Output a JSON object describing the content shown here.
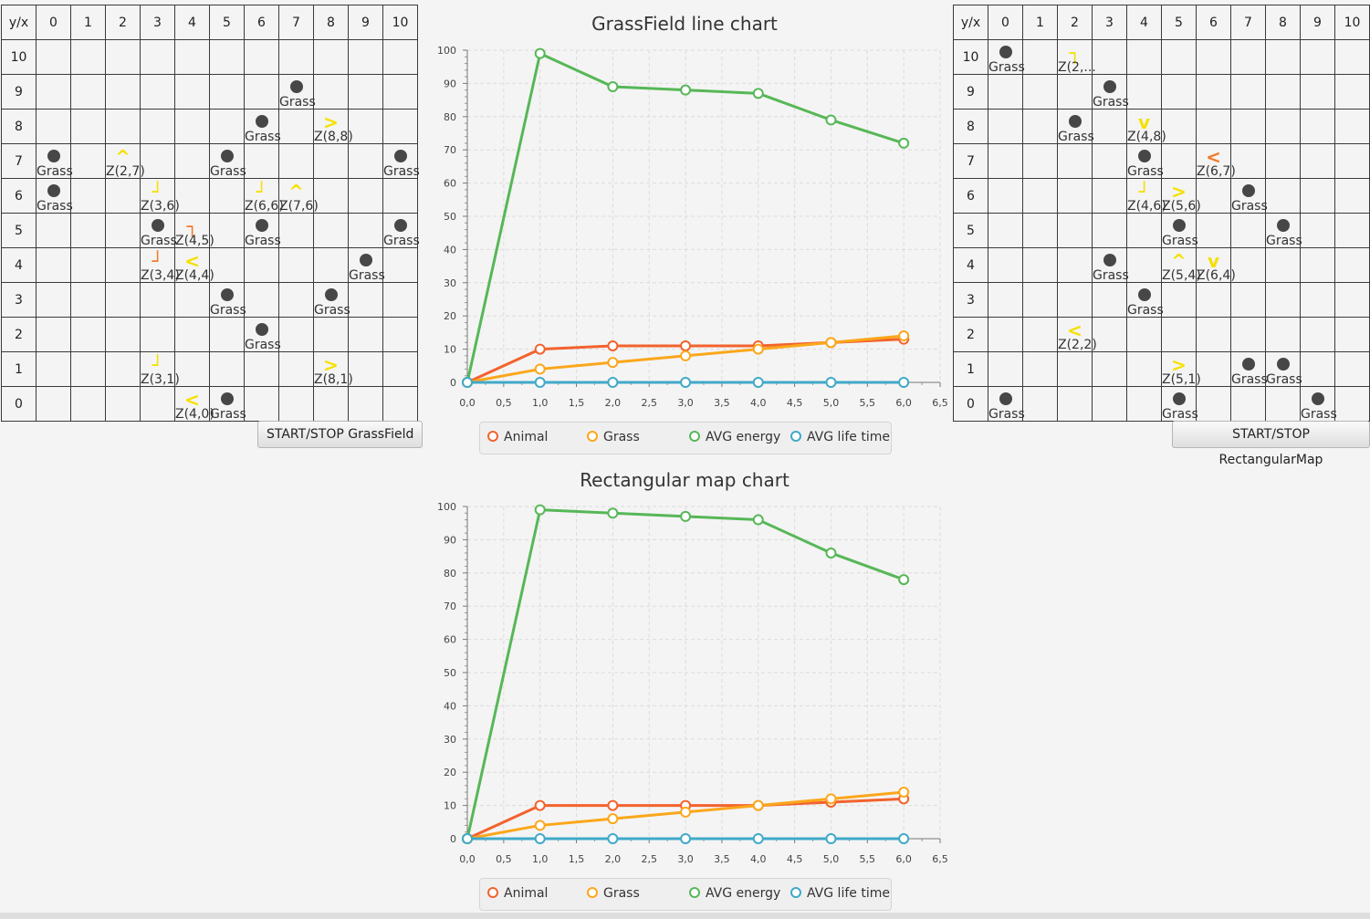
{
  "grass_grid": {
    "corner_label": "y/x",
    "x_headers": [
      "0",
      "1",
      "2",
      "3",
      "4",
      "5",
      "6",
      "7",
      "8",
      "9",
      "10"
    ],
    "y_headers": [
      "10",
      "9",
      "8",
      "7",
      "6",
      "5",
      "4",
      "3",
      "2",
      "1",
      "0"
    ],
    "cells": [
      {
        "x": 7,
        "y": 9,
        "kind": "grass",
        "label": "Grass"
      },
      {
        "x": 6,
        "y": 8,
        "kind": "grass",
        "label": "Grass"
      },
      {
        "x": 8,
        "y": 8,
        "kind": "animal",
        "dir": "right",
        "color": "#f5e000",
        "label": "Z(8,8)"
      },
      {
        "x": 0,
        "y": 7,
        "kind": "grass",
        "label": "Grass"
      },
      {
        "x": 2,
        "y": 7,
        "kind": "animal",
        "dir": "up",
        "color": "#f5e000",
        "label": "Z(2,7)"
      },
      {
        "x": 5,
        "y": 7,
        "kind": "grass",
        "label": "Grass"
      },
      {
        "x": 10,
        "y": 7,
        "kind": "grass",
        "label": "Grass"
      },
      {
        "x": 0,
        "y": 6,
        "kind": "grass",
        "label": "Grass"
      },
      {
        "x": 3,
        "y": 6,
        "kind": "animal",
        "dir": "down-right",
        "color": "#f5e000",
        "label": "Z(3,6)"
      },
      {
        "x": 6,
        "y": 6,
        "kind": "animal",
        "dir": "down-right",
        "color": "#f5e000",
        "label": "Z(6,6)"
      },
      {
        "x": 7,
        "y": 6,
        "kind": "animal",
        "dir": "up",
        "color": "#f5e000",
        "label": "Z(7,6)"
      },
      {
        "x": 3,
        "y": 5,
        "kind": "grass",
        "label": "Grass"
      },
      {
        "x": 4,
        "y": 5,
        "kind": "animal",
        "dir": "up-right",
        "color": "#f07b2c",
        "label": "Z(4,5)"
      },
      {
        "x": 6,
        "y": 5,
        "kind": "grass",
        "label": "Grass"
      },
      {
        "x": 10,
        "y": 5,
        "kind": "grass",
        "label": "Grass"
      },
      {
        "x": 3,
        "y": 4,
        "kind": "animal",
        "dir": "down-right",
        "color": "#f07b2c",
        "label": "Z(3,4)"
      },
      {
        "x": 4,
        "y": 4,
        "kind": "animal",
        "dir": "left",
        "color": "#f5e000",
        "label": "Z(4,4)"
      },
      {
        "x": 9,
        "y": 4,
        "kind": "grass",
        "label": "Grass"
      },
      {
        "x": 5,
        "y": 3,
        "kind": "grass",
        "label": "Grass"
      },
      {
        "x": 8,
        "y": 3,
        "kind": "grass",
        "label": "Grass"
      },
      {
        "x": 6,
        "y": 2,
        "kind": "grass",
        "label": "Grass"
      },
      {
        "x": 3,
        "y": 1,
        "kind": "animal",
        "dir": "down-right",
        "color": "#f5e000",
        "label": "Z(3,1)"
      },
      {
        "x": 8,
        "y": 1,
        "kind": "animal",
        "dir": "right",
        "color": "#f5e000",
        "label": "Z(8,1)"
      },
      {
        "x": 4,
        "y": 0,
        "kind": "animal",
        "dir": "left",
        "color": "#f5e000",
        "label": "Z(4,0)"
      },
      {
        "x": 5,
        "y": 0,
        "kind": "grass",
        "label": "Grass"
      }
    ]
  },
  "rect_grid": {
    "corner_label": "y/x",
    "x_headers": [
      "0",
      "1",
      "2",
      "3",
      "4",
      "5",
      "6",
      "7",
      "8",
      "9",
      "10"
    ],
    "y_headers": [
      "10",
      "9",
      "8",
      "7",
      "6",
      "5",
      "4",
      "3",
      "2",
      "1",
      "0"
    ],
    "cells": [
      {
        "x": 0,
        "y": 10,
        "kind": "grass",
        "label": "Grass"
      },
      {
        "x": 2,
        "y": 10,
        "kind": "animal",
        "dir": "up-right",
        "color": "#f5e000",
        "label": "Z(2,..."
      },
      {
        "x": 3,
        "y": 9,
        "kind": "grass",
        "label": "Grass"
      },
      {
        "x": 2,
        "y": 8,
        "kind": "grass",
        "label": "Grass"
      },
      {
        "x": 4,
        "y": 8,
        "kind": "animal",
        "dir": "down",
        "color": "#f5e000",
        "label": "Z(4,8)"
      },
      {
        "x": 4,
        "y": 7,
        "kind": "grass",
        "label": "Grass"
      },
      {
        "x": 6,
        "y": 7,
        "kind": "animal",
        "dir": "left",
        "color": "#f07b2c",
        "label": "Z(6,7)"
      },
      {
        "x": 4,
        "y": 6,
        "kind": "animal",
        "dir": "down-right",
        "color": "#f5e000",
        "label": "Z(4,6)"
      },
      {
        "x": 5,
        "y": 6,
        "kind": "animal",
        "dir": "right",
        "color": "#f5e000",
        "label": "Z(5,6)"
      },
      {
        "x": 7,
        "y": 6,
        "kind": "grass",
        "label": "Grass"
      },
      {
        "x": 5,
        "y": 5,
        "kind": "grass",
        "label": "Grass"
      },
      {
        "x": 8,
        "y": 5,
        "kind": "grass",
        "label": "Grass"
      },
      {
        "x": 3,
        "y": 4,
        "kind": "grass",
        "label": "Grass"
      },
      {
        "x": 5,
        "y": 4,
        "kind": "animal",
        "dir": "up",
        "color": "#f5e000",
        "label": "Z(5,4)"
      },
      {
        "x": 6,
        "y": 4,
        "kind": "animal",
        "dir": "down",
        "color": "#f5e000",
        "label": "Z(6,4)"
      },
      {
        "x": 4,
        "y": 3,
        "kind": "grass",
        "label": "Grass"
      },
      {
        "x": 2,
        "y": 2,
        "kind": "animal",
        "dir": "left",
        "color": "#f5e000",
        "label": "Z(2,2)"
      },
      {
        "x": 5,
        "y": 1,
        "kind": "animal",
        "dir": "right",
        "color": "#f5e000",
        "label": "Z(5,1)"
      },
      {
        "x": 7,
        "y": 1,
        "kind": "grass",
        "label": "Grass"
      },
      {
        "x": 8,
        "y": 1,
        "kind": "grass",
        "label": "Grass"
      },
      {
        "x": 0,
        "y": 0,
        "kind": "grass",
        "label": "Grass"
      },
      {
        "x": 5,
        "y": 0,
        "kind": "grass",
        "label": "Grass"
      },
      {
        "x": 9,
        "y": 0,
        "kind": "grass",
        "label": "Grass"
      }
    ]
  },
  "buttons": {
    "grassfield": "START/STOP GrassField",
    "rectangular": "START/STOP RectangularMap"
  },
  "chart_data": [
    {
      "type": "line",
      "title": "GrassField line chart",
      "xlabel": "",
      "ylabel": "",
      "xlim": [
        0,
        6.5
      ],
      "ylim": [
        0,
        100
      ],
      "x_ticks": [
        "0,0",
        "0,5",
        "1,0",
        "1,5",
        "2,0",
        "2,5",
        "3,0",
        "3,5",
        "4,0",
        "4,5",
        "5,0",
        "5,5",
        "6,0",
        "6,5"
      ],
      "y_ticks": [
        "0",
        "10",
        "20",
        "30",
        "40",
        "50",
        "60",
        "70",
        "80",
        "90",
        "100"
      ],
      "grid": true,
      "legend_position": "bottom",
      "x": [
        0,
        1,
        2,
        3,
        4,
        5,
        6
      ],
      "series": [
        {
          "name": "Animal",
          "color": "#f3622d",
          "values": [
            0,
            10,
            11,
            11,
            11,
            12,
            13
          ]
        },
        {
          "name": "Grass",
          "color": "#fba71b",
          "values": [
            0,
            4,
            6,
            8,
            10,
            12,
            14
          ]
        },
        {
          "name": "AVG energy",
          "color": "#57b757",
          "values": [
            0,
            99,
            89,
            88,
            87,
            79,
            72
          ]
        },
        {
          "name": "AVG life time",
          "color": "#41a9c9",
          "values": [
            0,
            0,
            0,
            0,
            0,
            0,
            0
          ]
        }
      ]
    },
    {
      "type": "line",
      "title": "Rectangular map chart",
      "xlabel": "",
      "ylabel": "",
      "xlim": [
        0,
        6.5
      ],
      "ylim": [
        0,
        100
      ],
      "x_ticks": [
        "0,0",
        "0,5",
        "1,0",
        "1,5",
        "2,0",
        "2,5",
        "3,0",
        "3,5",
        "4,0",
        "4,5",
        "5,0",
        "5,5",
        "6,0",
        "6,5"
      ],
      "y_ticks": [
        "0",
        "10",
        "20",
        "30",
        "40",
        "50",
        "60",
        "70",
        "80",
        "90",
        "100"
      ],
      "grid": true,
      "legend_position": "bottom",
      "x": [
        0,
        1,
        2,
        3,
        4,
        5,
        6
      ],
      "series": [
        {
          "name": "Animal",
          "color": "#f3622d",
          "values": [
            0,
            10,
            10,
            10,
            10,
            11,
            12
          ]
        },
        {
          "name": "Grass",
          "color": "#fba71b",
          "values": [
            0,
            4,
            6,
            8,
            10,
            12,
            14
          ]
        },
        {
          "name": "AVG energy",
          "color": "#57b757",
          "values": [
            0,
            99,
            98,
            97,
            96,
            86,
            78
          ]
        },
        {
          "name": "AVG life time",
          "color": "#41a9c9",
          "values": [
            0,
            0,
            0,
            0,
            0,
            0,
            0
          ]
        }
      ]
    }
  ]
}
